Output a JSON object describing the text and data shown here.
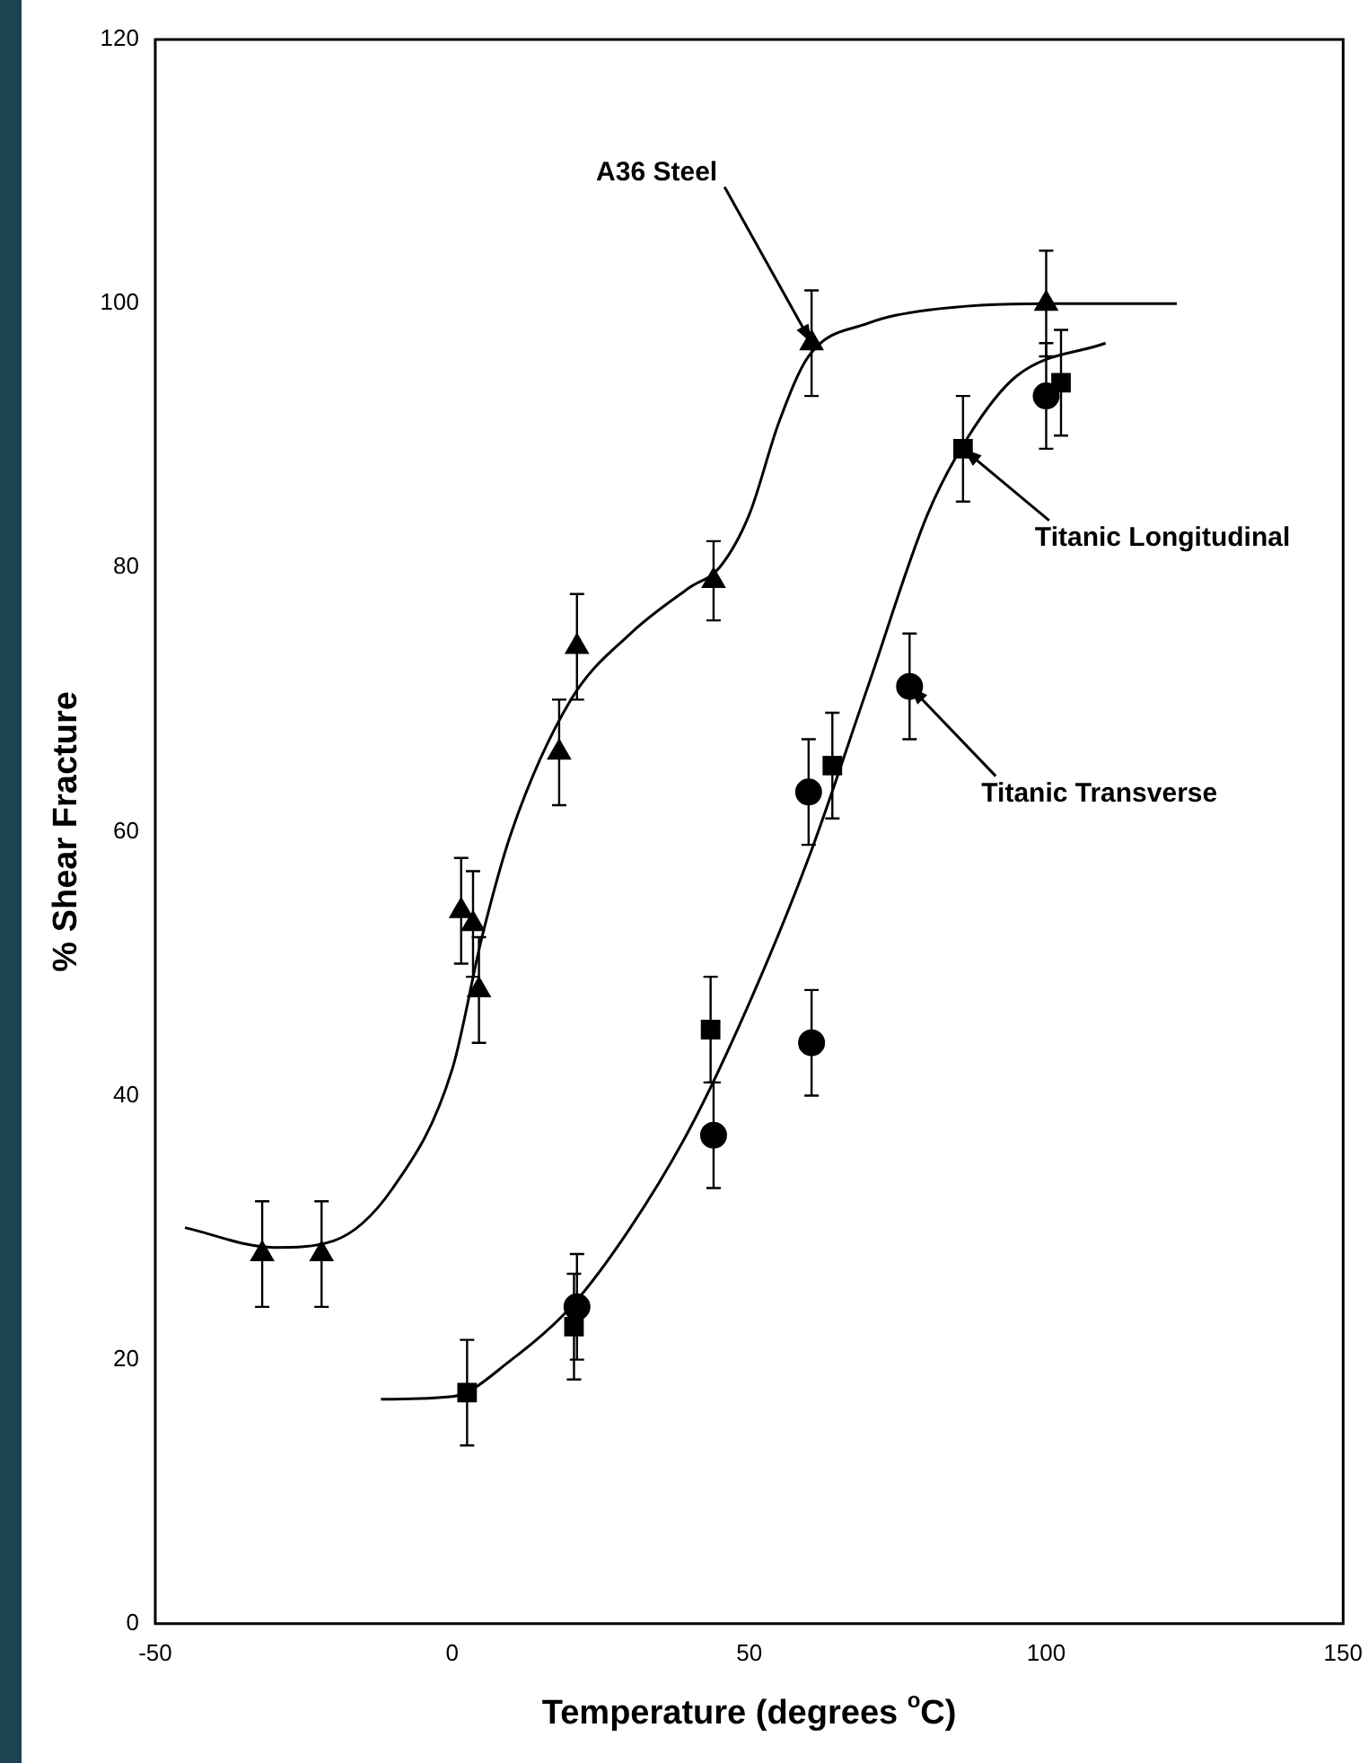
{
  "chart_data": {
    "type": "scatter",
    "xlabel": "Temperature (degrees $^{o}$C)",
    "ylabel": "% Shear Fracture",
    "xlim": [
      -50,
      150
    ],
    "xticks": [
      -50,
      0,
      50,
      100,
      150
    ],
    "ylim": [
      0,
      120
    ],
    "yticks": [
      0,
      20,
      40,
      60,
      80,
      100,
      120
    ],
    "grid": false,
    "legend": false,
    "series": [
      {
        "marker": "triangle",
        "color": "#000000",
        "x": [
          -32,
          -22,
          1.5,
          3.5,
          4.5,
          18,
          21,
          44,
          60.5,
          100
        ],
        "values": [
          28,
          28,
          54,
          53,
          48,
          66,
          74,
          79,
          97,
          100
        ],
        "errors": [
          4,
          4,
          4,
          4,
          4,
          4,
          4,
          3,
          4,
          4
        ]
      },
      {
        "marker": "square",
        "color": "#000000",
        "x": [
          2.5,
          20.5,
          43.5,
          64,
          86,
          102.5
        ],
        "values": [
          17.5,
          22.5,
          45,
          65,
          89,
          94
        ],
        "errors": [
          4,
          4,
          4,
          4,
          4,
          4
        ]
      },
      {
        "marker": "circle",
        "color": "#000000",
        "x": [
          21,
          44,
          60,
          60.5,
          77,
          100
        ],
        "values": [
          24,
          37,
          63,
          44,
          71,
          93
        ],
        "errors": [
          4,
          4,
          4,
          4,
          4,
          4
        ]
      },
      {
        "type": "line",
        "marker": "none",
        "color": "#000000",
        "x": [
          -45,
          -30,
          -20,
          -10,
          0,
          5,
          10,
          20,
          30,
          40,
          45,
          50,
          55,
          60,
          70,
          80,
          100,
          122
        ],
        "values": [
          30,
          28.5,
          29,
          33,
          42,
          52,
          60,
          70,
          75,
          78.5,
          80,
          84,
          91,
          96,
          98.5,
          99.5,
          100,
          100
        ]
      },
      {
        "type": "line",
        "marker": "none",
        "color": "#000000",
        "x": [
          -12,
          0,
          10,
          20,
          30,
          40,
          50,
          60,
          70,
          80,
          87,
          95,
          110
        ],
        "values": [
          17,
          17.2,
          20,
          24,
          30,
          37.5,
          47,
          58,
          71,
          84,
          90,
          94.5,
          97
        ]
      }
    ],
    "annotations": [
      {
        "text": "A36 Steel",
        "x": 60.5,
        "y": 97
      },
      {
        "text": "Titanic Longitudinal",
        "x": 86,
        "y": 89
      },
      {
        "text": "Titanic Transverse",
        "x": 77,
        "y": 71
      }
    ]
  }
}
